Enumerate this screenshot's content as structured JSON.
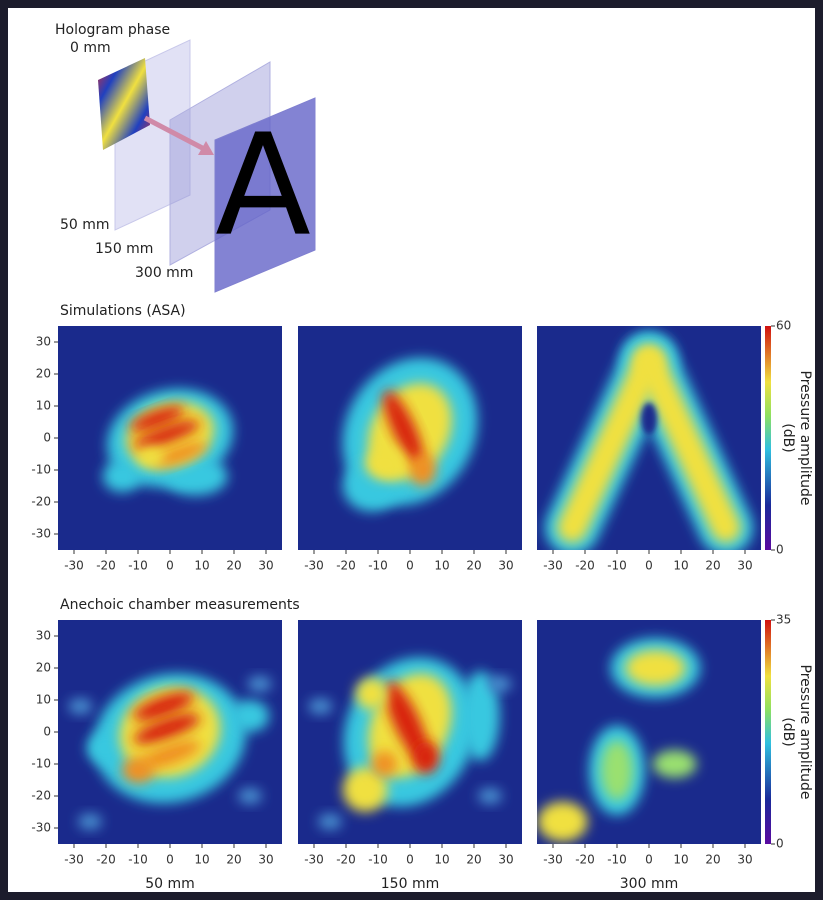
{
  "diagram": {
    "title": "Hologram phase",
    "planes": [
      "0 mm",
      "50 mm",
      "150 mm",
      "300 mm"
    ],
    "letter": "A"
  },
  "rows": [
    {
      "title": "Simulations (ASA)",
      "colorbar": {
        "label": "Pressure amplitude",
        "unit": "(dB)",
        "ticks": [
          0,
          60
        ]
      }
    },
    {
      "title": "Anechoic chamber measurements",
      "colorbar": {
        "label": "Pressure amplitude",
        "unit": "(dB)",
        "ticks": [
          0,
          35
        ]
      }
    }
  ],
  "axes": {
    "ticks": [
      -30,
      -20,
      -10,
      0,
      10,
      20,
      30
    ],
    "lim": [
      -35,
      35
    ]
  },
  "columns": [
    "50 mm",
    "150 mm",
    "300 mm"
  ]
}
